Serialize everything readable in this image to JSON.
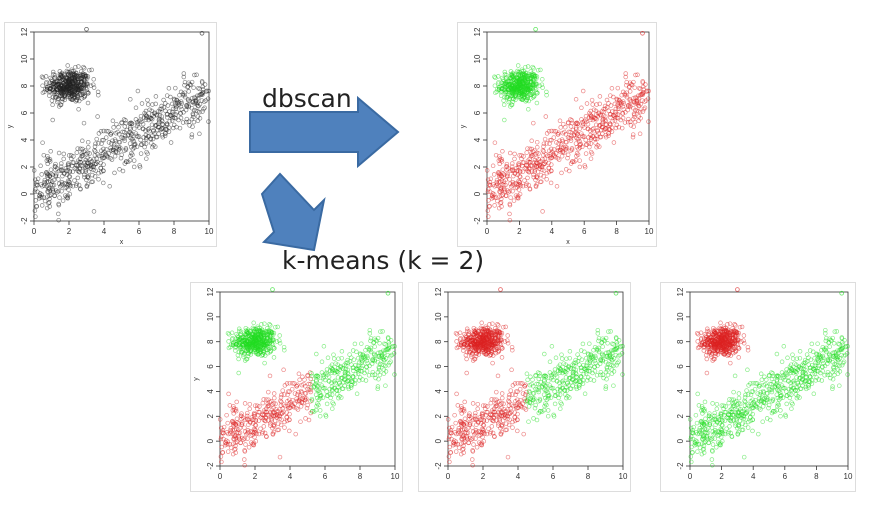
{
  "labels": {
    "dbscan": "dbscan",
    "kmeans": "k-means (k = 2)"
  },
  "colors": {
    "arrow_fill": "#4f81bd",
    "arrow_stroke": "#3a6aa2",
    "black": "#222222",
    "green": "#22dd22",
    "red": "#dd2222"
  },
  "chart_data": [
    {
      "id": "original",
      "type": "scatter",
      "title": "",
      "xlabel": "x",
      "ylabel": "y",
      "xlim": [
        0,
        10
      ],
      "ylim": [
        -2,
        12
      ],
      "xticks": [
        "0",
        "2",
        "4",
        "6",
        "8",
        "10"
      ],
      "yticks": [
        "-2",
        "0",
        "2",
        "4",
        "6",
        "8",
        "10",
        "12"
      ],
      "grid": false,
      "clusters": [
        {
          "shape": "blob",
          "center": [
            2,
            8
          ],
          "spread": [
            0.6,
            0.6
          ],
          "n": 450,
          "color": "black"
        },
        {
          "shape": "band",
          "x_range": [
            0,
            10
          ],
          "intercept": 0,
          "slope": 0.75,
          "noise": 1.0,
          "n": 650,
          "color": "black"
        }
      ],
      "outliers": [
        [
          3,
          12.2
        ],
        [
          9.6,
          11.9
        ]
      ]
    },
    {
      "id": "dbscan",
      "type": "scatter",
      "title": "",
      "xlabel": "x",
      "ylabel": "y",
      "xlim": [
        0,
        10
      ],
      "ylim": [
        -2,
        12
      ],
      "xticks": [
        "0",
        "2",
        "4",
        "6",
        "8",
        "10"
      ],
      "yticks": [
        "-2",
        "0",
        "2",
        "4",
        "6",
        "8",
        "10",
        "12"
      ],
      "grid": false,
      "clusters": [
        {
          "shape": "blob",
          "center": [
            2,
            8
          ],
          "spread": [
            0.6,
            0.6
          ],
          "n": 450,
          "color": "green"
        },
        {
          "shape": "band",
          "x_range": [
            0,
            10
          ],
          "intercept": 0,
          "slope": 0.75,
          "noise": 1.0,
          "n": 650,
          "color": "red"
        }
      ],
      "outliers": [
        [
          3,
          12.2
        ],
        [
          9.6,
          11.9
        ]
      ]
    },
    {
      "id": "kmeans-a",
      "type": "scatter",
      "title": "",
      "xlabel": "",
      "ylabel": "y",
      "xlim": [
        0,
        10
      ],
      "ylim": [
        -2,
        12
      ],
      "xticks": [
        "0",
        "2",
        "4",
        "6",
        "8",
        "10"
      ],
      "yticks": [
        "-2",
        "0",
        "2",
        "4",
        "6",
        "8",
        "10",
        "12"
      ],
      "grid": false,
      "split_x": 5.2,
      "clusters": [
        {
          "shape": "blob",
          "center": [
            2,
            8
          ],
          "spread": [
            0.6,
            0.6
          ],
          "n": 450,
          "color": "green"
        },
        {
          "shape": "band",
          "x_range": [
            0,
            10
          ],
          "intercept": 0,
          "slope": 0.75,
          "noise": 1.0,
          "n": 650,
          "color_left": "red",
          "color_right": "green"
        }
      ],
      "outliers": [
        [
          3,
          12.2
        ],
        [
          9.6,
          11.9
        ]
      ]
    },
    {
      "id": "kmeans-b",
      "type": "scatter",
      "title": "",
      "xlabel": "",
      "ylabel": "",
      "xlim": [
        0,
        10
      ],
      "ylim": [
        -2,
        12
      ],
      "xticks": [
        "0",
        "2",
        "4",
        "6",
        "8",
        "10"
      ],
      "yticks": [
        "-2",
        "0",
        "2",
        "4",
        "6",
        "8",
        "10",
        "12"
      ],
      "grid": false,
      "split_x": 4.5,
      "clusters": [
        {
          "shape": "blob",
          "center": [
            2,
            8
          ],
          "spread": [
            0.6,
            0.6
          ],
          "n": 450,
          "color": "red"
        },
        {
          "shape": "band",
          "x_range": [
            0,
            10
          ],
          "intercept": 0,
          "slope": 0.75,
          "noise": 1.0,
          "n": 650,
          "color_left": "red",
          "color_right": "green"
        }
      ],
      "outliers": [
        [
          3,
          12.2
        ],
        [
          9.6,
          11.9
        ]
      ]
    },
    {
      "id": "kmeans-c",
      "type": "scatter",
      "title": "",
      "xlabel": "",
      "ylabel": "",
      "xlim": [
        0,
        10
      ],
      "ylim": [
        -2,
        12
      ],
      "xticks": [
        "0",
        "2",
        "4",
        "6",
        "8",
        "10"
      ],
      "yticks": [
        "-2",
        "0",
        "2",
        "4",
        "6",
        "8",
        "10",
        "12"
      ],
      "grid": false,
      "clusters": [
        {
          "shape": "blob",
          "center": [
            2,
            8
          ],
          "spread": [
            0.6,
            0.6
          ],
          "n": 450,
          "color": "red"
        },
        {
          "shape": "band",
          "x_range": [
            0,
            10
          ],
          "intercept": 0,
          "slope": 0.75,
          "noise": 1.0,
          "n": 650,
          "color": "green"
        }
      ],
      "outliers": [
        [
          3,
          12.2
        ],
        [
          9.6,
          11.9
        ]
      ]
    }
  ]
}
